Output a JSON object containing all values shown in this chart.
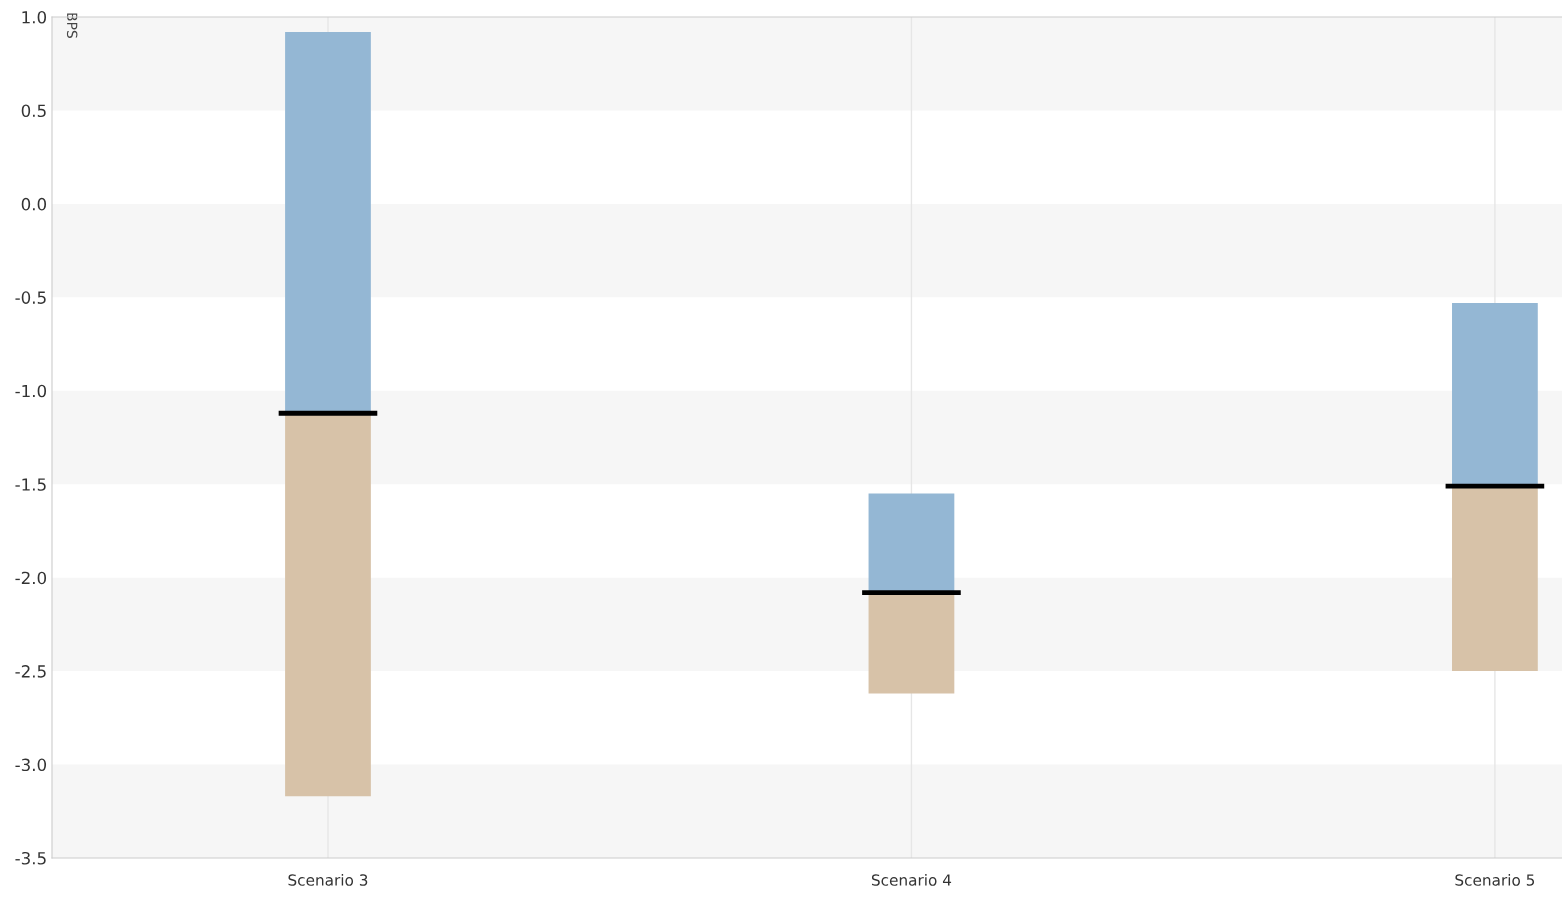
{
  "chart_data": {
    "type": "bar",
    "ylabel": "BPS",
    "categories": [
      "Scenario 3",
      "Scenario 4",
      "Scenario 5"
    ],
    "series": [
      {
        "color": "#d7c2a8",
        "base": [
          -3.17,
          -2.62,
          -2.5
        ],
        "values": [
          2.05,
          0.54,
          0.99
        ]
      },
      {
        "color": "#94b7d4",
        "base": [
          -1.12,
          -2.08,
          -1.51
        ],
        "values": [
          2.04,
          0.53,
          0.98
        ]
      },
      {
        "type": "bar",
        "color": "#000000",
        "base": [
          -1.12,
          -2.08,
          -1.51
        ],
        "values": [
          0,
          0,
          0
        ]
      }
    ],
    "ylim": [
      -3.5,
      1.0
    ],
    "yticks": [
      {
        "value": 1.0,
        "label": "1.0"
      },
      {
        "value": 0.5,
        "label": "0.5"
      },
      {
        "value": 0.0,
        "label": "0.0"
      },
      {
        "value": -0.5,
        "label": "-0.5"
      },
      {
        "value": -1.0,
        "label": "-1.0"
      },
      {
        "value": -1.5,
        "label": "-1.5"
      },
      {
        "value": -2.0,
        "label": "-2.0"
      },
      {
        "value": -2.5,
        "label": "-2.5"
      },
      {
        "value": -3.0,
        "label": "-3.0"
      },
      {
        "value": -3.5,
        "label": "-3.5"
      }
    ],
    "grid": "x",
    "legend": false
  }
}
